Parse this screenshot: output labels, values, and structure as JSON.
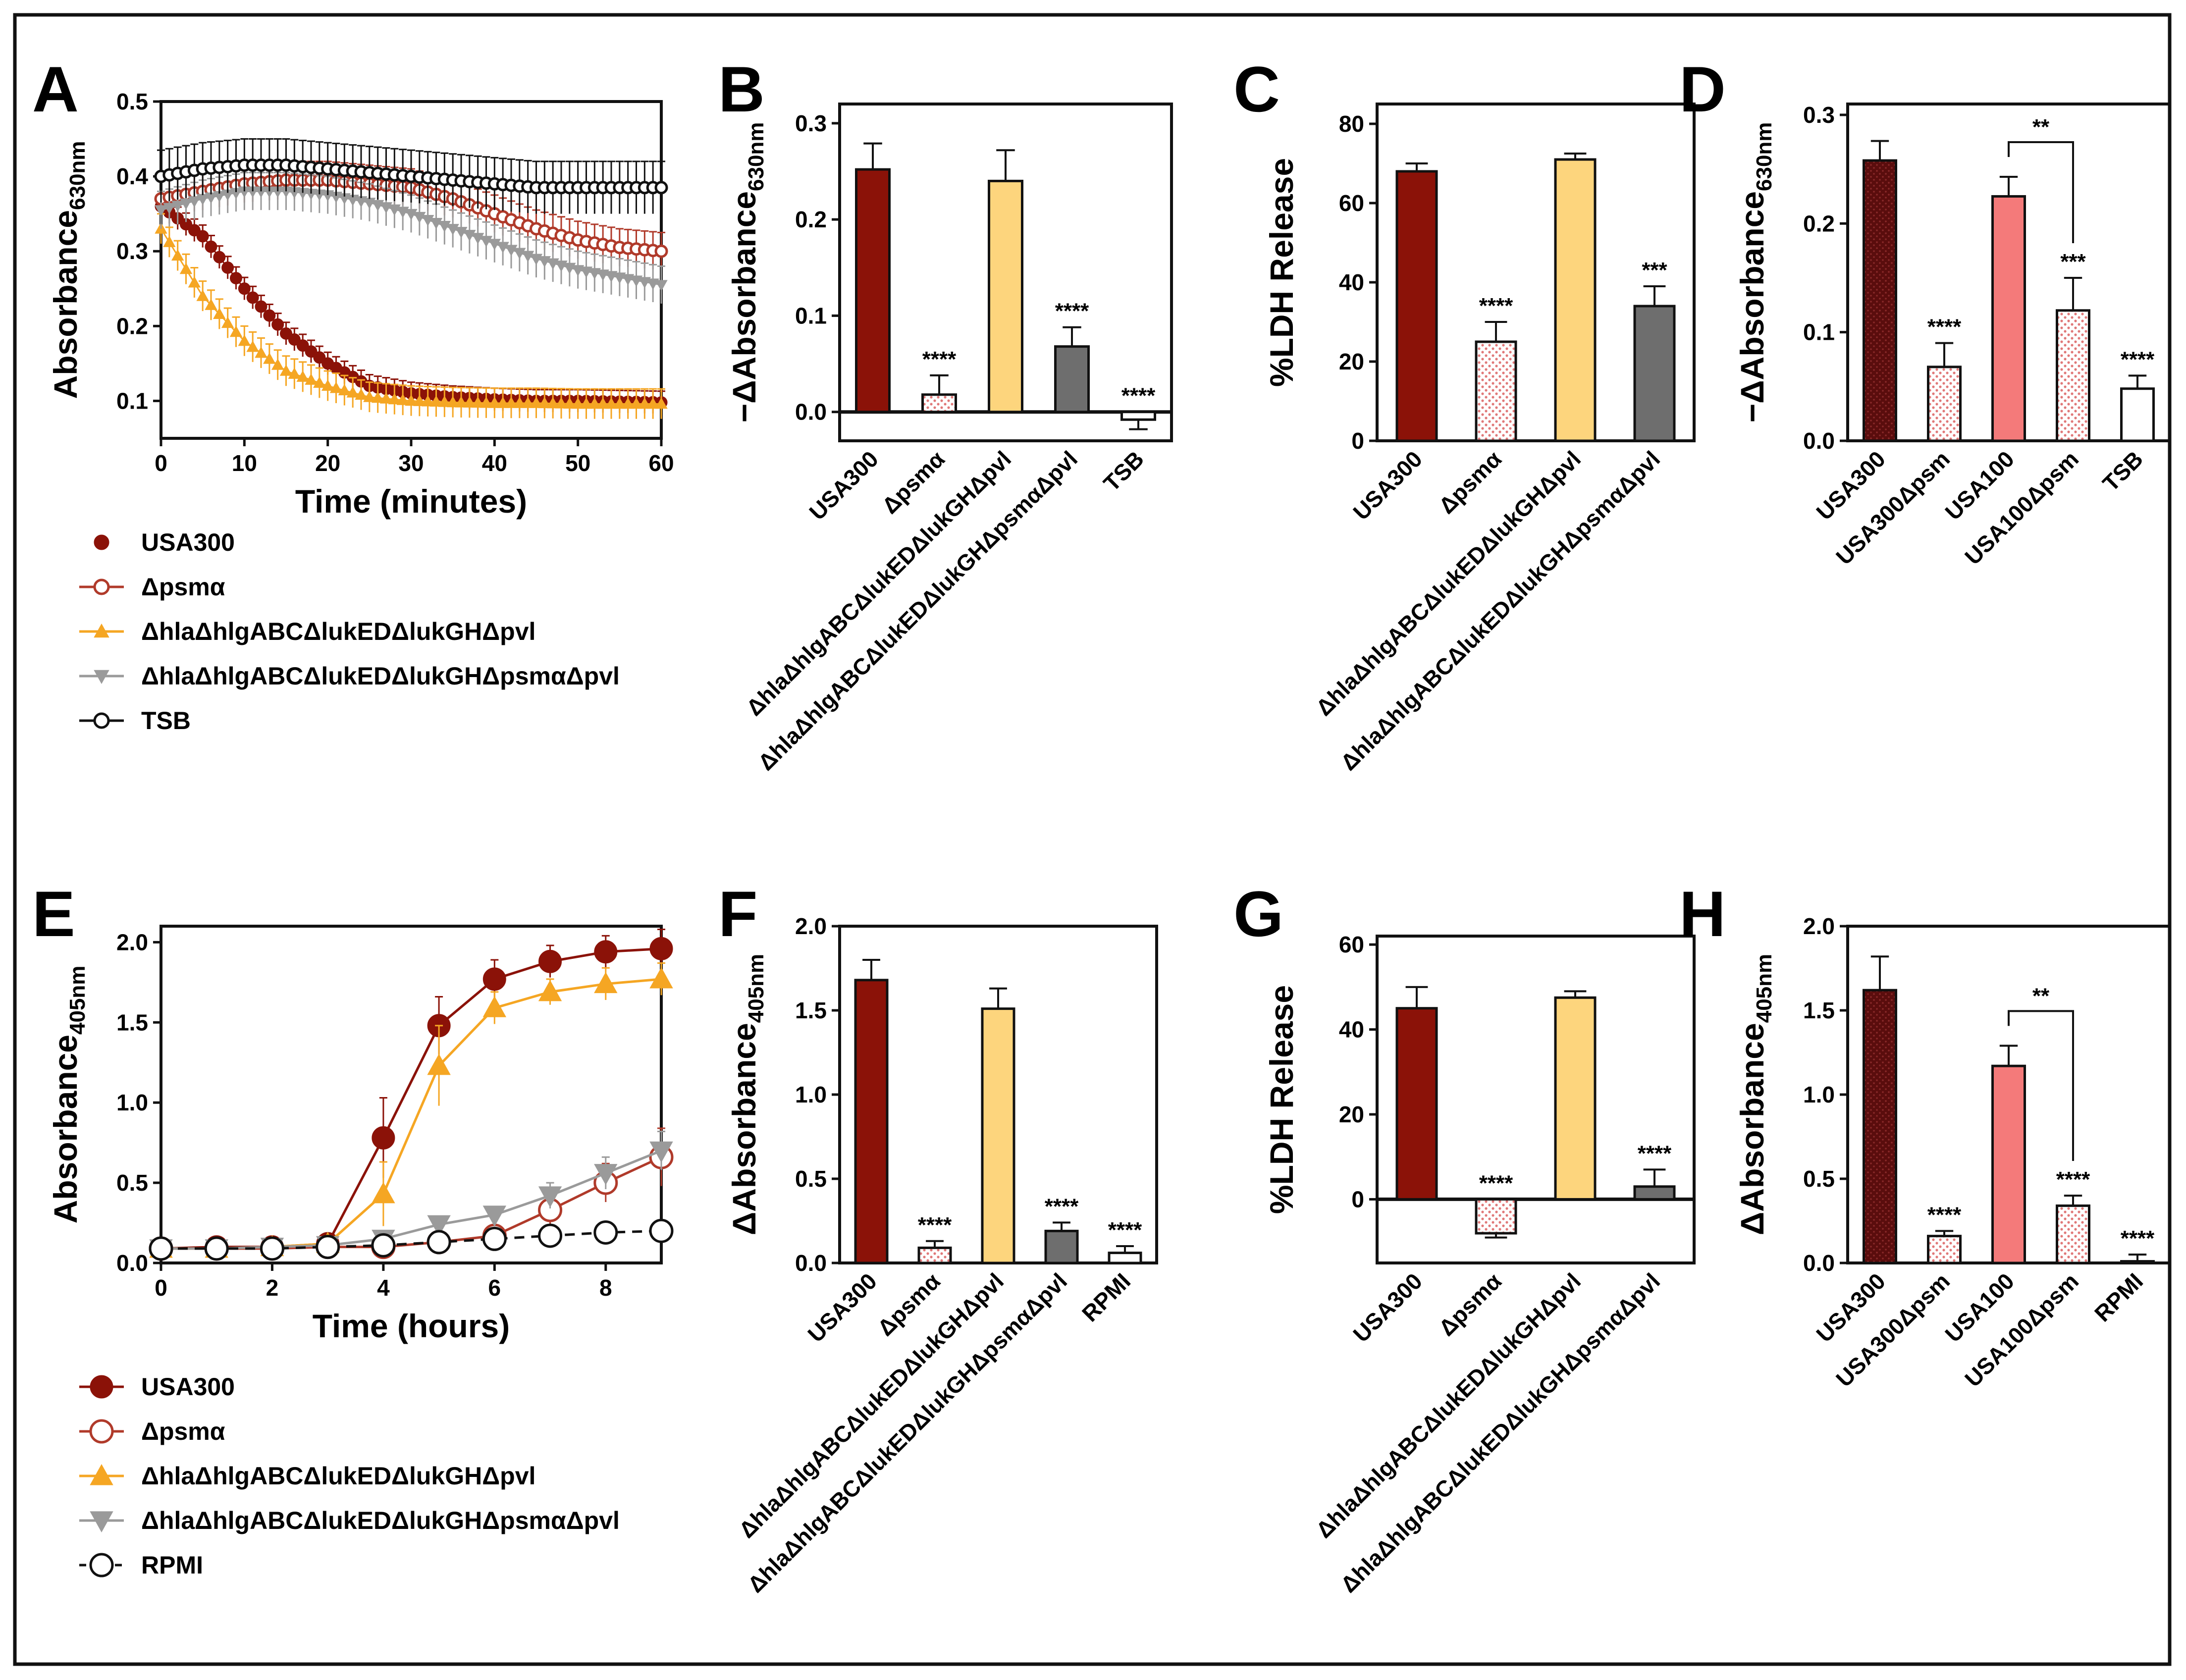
{
  "colors": {
    "usa300": "#8b1208",
    "psma": "#b03a2a",
    "hla_mut": "#f5a623",
    "hla_mut_light": "#fdd57d",
    "hla_psma_mut": "#9a9a9a",
    "dark_gray_bar": "#6e6e6e",
    "tsb": "#111111",
    "usa100": "#f47a7a",
    "dark_maroon": "#5a0d0d"
  },
  "chart_data": [
    {
      "panel": "A",
      "type": "line",
      "xlabel": "Time (minutes)",
      "ylabel_main": "Absorbance",
      "ylabel_sub": "630nm",
      "xlim": [
        0,
        60
      ],
      "ylim": [
        0.05,
        0.5
      ],
      "xticks": [
        "0",
        "10",
        "20",
        "30",
        "40",
        "50",
        "60"
      ],
      "yticks": [
        "0.1",
        "0.2",
        "0.3",
        "0.4",
        "0.5"
      ],
      "x": [
        0,
        5,
        10,
        15,
        20,
        25,
        30,
        35,
        40,
        45,
        50,
        55,
        60
      ],
      "series": [
        {
          "name": "USA300",
          "marker": "filled-circle",
          "values": [
            0.36,
            0.32,
            0.25,
            0.19,
            0.15,
            0.12,
            0.11,
            0.105,
            0.102,
            0.1,
            0.1,
            0.099,
            0.098
          ],
          "err": 0.015
        },
        {
          "name": "Δpsmα",
          "marker": "open-circle",
          "values": [
            0.37,
            0.38,
            0.39,
            0.395,
            0.395,
            0.39,
            0.385,
            0.37,
            0.35,
            0.33,
            0.315,
            0.305,
            0.3
          ],
          "err": 0.025
        },
        {
          "name": "ΔhlaΔhlgABCΔlukEDΔlukGHΔpvl",
          "marker": "triangle-up",
          "values": [
            0.33,
            0.24,
            0.18,
            0.14,
            0.12,
            0.105,
            0.1,
            0.098,
            0.097,
            0.097,
            0.096,
            0.096,
            0.096
          ],
          "err": 0.02
        },
        {
          "name": "ΔhlaΔhlgABCΔlukEDΔlukGHΔpsmαΔpvl",
          "marker": "triangle-down",
          "values": [
            0.355,
            0.37,
            0.38,
            0.38,
            0.375,
            0.365,
            0.35,
            0.33,
            0.31,
            0.29,
            0.275,
            0.265,
            0.255
          ],
          "err": 0.025
        },
        {
          "name": "TSB",
          "marker": "open-circle",
          "values": [
            0.4,
            0.41,
            0.415,
            0.415,
            0.41,
            0.405,
            0.4,
            0.395,
            0.39,
            0.385,
            0.385,
            0.385,
            0.385
          ],
          "err": 0.035
        }
      ]
    },
    {
      "panel": "B",
      "type": "bar",
      "ylabel_main": "−ΔAbsorbance",
      "ylabel_sub": "630nm",
      "ylim": [
        -0.03,
        0.32
      ],
      "yticks": [
        "0.0",
        "0.1",
        "0.2",
        "0.3"
      ],
      "categories": [
        "USA300",
        "Δpsmα",
        "ΔhlaΔhlgABCΔlukEDΔlukGHΔpvl",
        "ΔhlaΔhlgABCΔlukEDΔlukGHΔpsmαΔpvl",
        "TSB"
      ],
      "values": [
        0.252,
        0.018,
        0.24,
        0.068,
        -0.008
      ],
      "errors": [
        0.027,
        0.02,
        0.032,
        0.02,
        0.01
      ],
      "significance": [
        "",
        "****",
        "",
        "****",
        "****"
      ],
      "fills": [
        "usa300",
        "pink-dots",
        "hla_mut_light",
        "dark_gray_bar",
        "white"
      ]
    },
    {
      "panel": "C",
      "type": "bar",
      "ylabel_main": "%LDH Release",
      "ylim": [
        0,
        85
      ],
      "yticks": [
        "0",
        "20",
        "40",
        "60",
        "80"
      ],
      "categories": [
        "USA300",
        "Δpsmα",
        "ΔhlaΔhlgABCΔlukEDΔlukGHΔpvl",
        "ΔhlaΔhlgABCΔlukEDΔlukGHΔpsmαΔpvl"
      ],
      "values": [
        68,
        25,
        71,
        34
      ],
      "errors": [
        2,
        5,
        1.5,
        5
      ],
      "significance": [
        "",
        "****",
        "",
        "***"
      ],
      "fills": [
        "usa300",
        "pink-dots",
        "hla_mut_light",
        "dark_gray_bar"
      ]
    },
    {
      "panel": "D",
      "type": "bar",
      "ylabel_main": "−ΔAbsorbance",
      "ylabel_sub": "630nm",
      "ylim": [
        0,
        0.31
      ],
      "yticks": [
        "0.0",
        "0.1",
        "0.2",
        "0.3"
      ],
      "categories": [
        "USA300",
        "USA300Δpsm",
        "USA100",
        "USA100Δpsm",
        "TSB"
      ],
      "values": [
        0.258,
        0.068,
        0.225,
        0.12,
        0.048
      ],
      "errors": [
        0.018,
        0.022,
        0.018,
        0.03,
        0.012
      ],
      "significance": [
        "",
        "****",
        "",
        "***",
        "****"
      ],
      "bracket": {
        "from": 2,
        "to": 3,
        "label": "**"
      },
      "fills": [
        "dark_maroon",
        "pink-dots",
        "usa100",
        "pink-dots",
        "white"
      ]
    },
    {
      "panel": "E",
      "type": "line",
      "xlabel": "Time (hours)",
      "ylabel_main": "Absorbance",
      "ylabel_sub": "405nm",
      "xlim": [
        0,
        9
      ],
      "ylim": [
        0,
        2.1
      ],
      "xticks": [
        "0",
        "2",
        "4",
        "6",
        "8"
      ],
      "yticks": [
        "0.0",
        "0.5",
        "1.0",
        "1.5",
        "2.0"
      ],
      "x": [
        0,
        1,
        2,
        3,
        4,
        5,
        6,
        7,
        8,
        9
      ],
      "series": [
        {
          "name": "USA300",
          "marker": "filled-circle",
          "values": [
            0.09,
            0.1,
            0.1,
            0.12,
            0.78,
            1.48,
            1.77,
            1.88,
            1.94,
            1.96
          ],
          "errs": [
            0.02,
            0.02,
            0.02,
            0.03,
            0.25,
            0.18,
            0.12,
            0.1,
            0.1,
            0.12
          ]
        },
        {
          "name": "Δpsmα",
          "marker": "open-circle",
          "values": [
            0.09,
            0.09,
            0.09,
            0.1,
            0.1,
            0.13,
            0.17,
            0.33,
            0.5,
            0.66
          ],
          "errs": [
            0.02,
            0.02,
            0.02,
            0.02,
            0.03,
            0.04,
            0.06,
            0.1,
            0.12,
            0.18
          ]
        },
        {
          "name": "ΔhlaΔhlgABCΔlukEDΔlukGHΔpvl",
          "marker": "triangle-up",
          "values": [
            0.09,
            0.09,
            0.1,
            0.12,
            0.43,
            1.23,
            1.59,
            1.69,
            1.74,
            1.77
          ],
          "errs": [
            0.02,
            0.02,
            0.02,
            0.03,
            0.2,
            0.25,
            0.1,
            0.08,
            0.1,
            0.1
          ]
        },
        {
          "name": "ΔhlaΔhlgABCΔlukEDΔlukGHΔpsmαΔpvl",
          "marker": "triangle-down",
          "values": [
            0.09,
            0.09,
            0.1,
            0.11,
            0.15,
            0.24,
            0.3,
            0.42,
            0.56,
            0.7
          ],
          "errs": [
            0.02,
            0.02,
            0.02,
            0.02,
            0.03,
            0.04,
            0.05,
            0.08,
            0.1,
            0.12
          ]
        },
        {
          "name": "RPMI",
          "marker": "open-circle-dashed",
          "values": [
            0.09,
            0.09,
            0.09,
            0.1,
            0.11,
            0.13,
            0.15,
            0.17,
            0.19,
            0.2
          ],
          "errs": [
            0.01,
            0.01,
            0.01,
            0.01,
            0.01,
            0.01,
            0.02,
            0.02,
            0.02,
            0.02
          ]
        }
      ]
    },
    {
      "panel": "F",
      "type": "bar",
      "ylabel_main": "ΔAbsorbance",
      "ylabel_sub": "405nm",
      "ylim": [
        0,
        2.0
      ],
      "yticks": [
        "0.0",
        "0.5",
        "1.0",
        "1.5",
        "2.0"
      ],
      "categories": [
        "USA300",
        "Δpsmα",
        "ΔhlaΔhlgABCΔlukEDΔlukGHΔpvl",
        "ΔhlaΔhlgABCΔlukEDΔlukGHΔpsmαΔpvl",
        "RPMI"
      ],
      "values": [
        1.68,
        0.09,
        1.51,
        0.19,
        0.06
      ],
      "errors": [
        0.12,
        0.04,
        0.12,
        0.05,
        0.04
      ],
      "significance": [
        "",
        "****",
        "",
        "****",
        "****"
      ],
      "fills": [
        "usa300",
        "pink-dots",
        "hla_mut_light",
        "dark_gray_bar",
        "white"
      ]
    },
    {
      "panel": "G",
      "type": "bar",
      "ylabel_main": "%LDH Release",
      "ylim": [
        -15,
        62
      ],
      "yticks": [
        "0",
        "20",
        "40",
        "60"
      ],
      "categories": [
        "USA300",
        "Δpsmα",
        "ΔhlaΔhlgABCΔlukEDΔlukGHΔpvl",
        "ΔhlaΔhlgABCΔlukEDΔlukGHΔpsmαΔpvl"
      ],
      "values": [
        45,
        -8,
        47.5,
        3
      ],
      "errors": [
        5,
        1,
        1.5,
        4
      ],
      "significance": [
        "",
        "****",
        "",
        "****"
      ],
      "fills": [
        "usa300",
        "pink-dots",
        "hla_mut_light",
        "dark_gray_bar"
      ]
    },
    {
      "panel": "H",
      "type": "bar",
      "ylabel_main": "ΔAbsorbance",
      "ylabel_sub": "405nm",
      "ylim": [
        0,
        2.0
      ],
      "yticks": [
        "0.0",
        "0.5",
        "1.0",
        "1.5",
        "2.0"
      ],
      "categories": [
        "USA300",
        "USA300Δpsm",
        "USA100",
        "USA100Δpsm",
        "RPMI"
      ],
      "values": [
        1.62,
        0.16,
        1.17,
        0.34,
        0.01
      ],
      "errors": [
        0.2,
        0.03,
        0.12,
        0.06,
        0.04
      ],
      "significance": [
        "",
        "****",
        "",
        "****",
        "****"
      ],
      "bracket": {
        "from": 2,
        "to": 3,
        "label": "**"
      },
      "fills": [
        "dark_maroon",
        "pink-dots",
        "usa100",
        "pink-dots",
        "white"
      ]
    }
  ]
}
